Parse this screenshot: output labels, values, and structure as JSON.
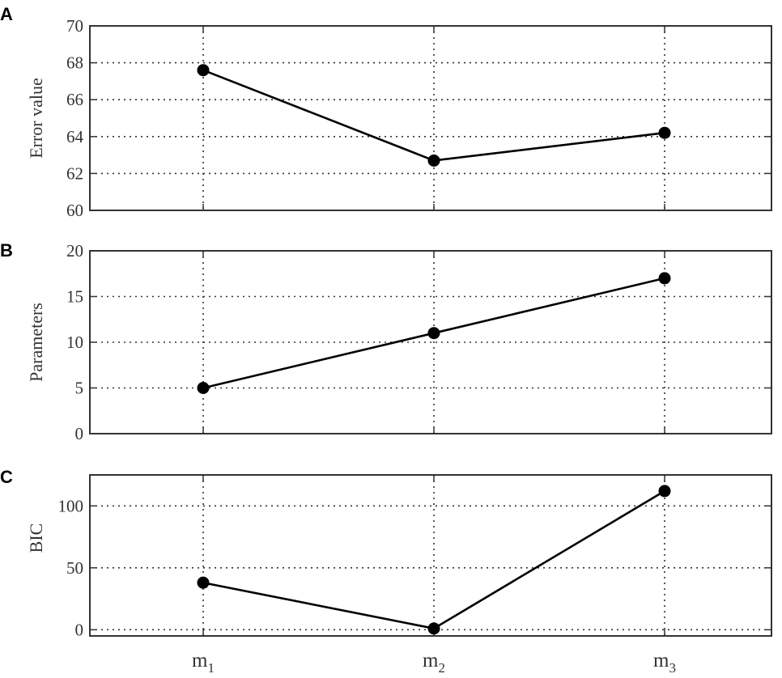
{
  "chart_data": [
    {
      "type": "line",
      "panel": "A",
      "ylabel": "Error value",
      "ylim": [
        60,
        70
      ],
      "yticks": [
        60,
        62,
        64,
        66,
        68,
        70
      ],
      "grid": true,
      "categories": [
        "m1",
        "m2",
        "m3"
      ],
      "values": [
        67.6,
        62.7,
        64.2
      ]
    },
    {
      "type": "line",
      "panel": "B",
      "ylabel": "Parameters",
      "ylim": [
        0,
        20
      ],
      "yticks": [
        0,
        5,
        10,
        15,
        20
      ],
      "grid": true,
      "categories": [
        "m1",
        "m2",
        "m3"
      ],
      "values": [
        5,
        11,
        17
      ]
    },
    {
      "type": "line",
      "panel": "C",
      "ylabel": "BIC",
      "ylim": [
        -5,
        125
      ],
      "yticks": [
        0,
        50,
        100
      ],
      "grid": true,
      "categories": [
        "m1",
        "m2",
        "m3"
      ],
      "values": [
        38,
        1,
        112
      ]
    }
  ],
  "x_axis": {
    "ticks": [
      {
        "base": "m",
        "sub": "1"
      },
      {
        "base": "m",
        "sub": "2"
      },
      {
        "base": "m",
        "sub": "3"
      }
    ]
  }
}
